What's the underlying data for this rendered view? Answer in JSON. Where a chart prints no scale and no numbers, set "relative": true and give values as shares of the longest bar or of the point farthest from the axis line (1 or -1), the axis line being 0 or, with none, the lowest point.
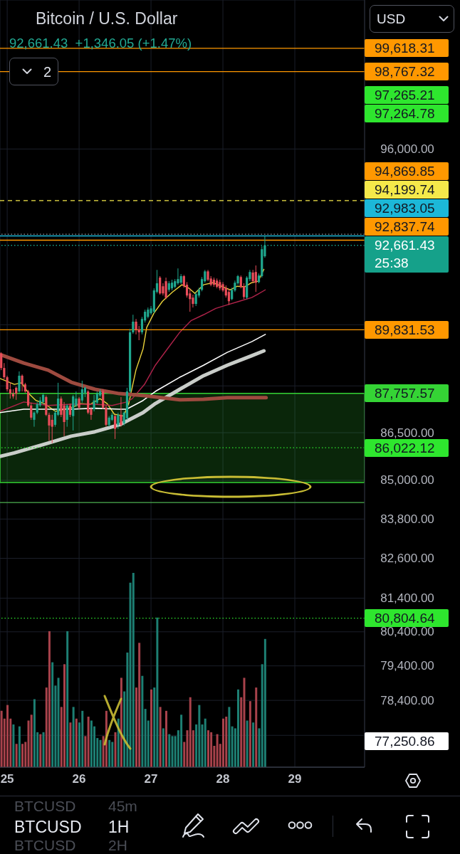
{
  "chart_data": [
    {
      "type": "candlestick",
      "title": "Bitcoin / U.S. Dollar",
      "subtitle": "92,661.43  +1,346.05 (+1.47%)",
      "x": [
        24.917,
        24.958,
        25,
        25.042,
        25.083,
        25.125,
        25.167,
        25.208,
        25.25,
        25.292,
        25.333,
        25.375,
        25.417,
        25.458,
        25.5,
        25.542,
        25.583,
        25.625,
        25.667,
        25.708,
        25.75,
        25.792,
        25.833,
        25.875,
        25.917,
        25.958,
        26,
        26.042,
        26.083,
        26.125,
        26.167,
        26.208,
        26.25,
        26.292,
        26.333,
        26.375,
        26.417,
        26.458,
        26.5,
        26.542,
        26.583,
        26.625,
        26.667,
        26.708,
        26.75,
        26.792,
        26.833,
        26.875,
        26.917,
        26.958,
        27,
        27.042,
        27.083,
        27.125,
        27.167,
        27.208,
        27.25,
        27.292,
        27.333,
        27.375,
        27.417,
        27.458,
        27.5,
        27.542,
        27.583,
        27.625,
        27.667,
        27.708,
        27.75,
        27.792,
        27.833,
        27.875,
        27.917,
        27.958,
        28,
        28.042,
        28.083,
        28.125,
        28.167,
        28.208,
        28.25,
        28.292,
        28.333,
        28.375,
        28.417,
        28.458,
        28.5,
        28.542,
        28.583
      ],
      "ohlc": [
        [
          89050,
          89090,
          88510,
          88580
        ],
        [
          88580,
          88740,
          88210,
          88280
        ],
        [
          88280,
          88330,
          87820,
          87890
        ],
        [
          87890,
          88120,
          87590,
          87750
        ],
        [
          87750,
          87890,
          87590,
          87660
        ],
        [
          87940,
          87980,
          87550,
          87750
        ],
        [
          87820,
          88470,
          87780,
          88330
        ],
        [
          88330,
          88370,
          87820,
          88050
        ],
        [
          88050,
          88100,
          87780,
          87820
        ],
        [
          87820,
          87870,
          87320,
          87370
        ],
        [
          87370,
          87460,
          86910,
          86980
        ],
        [
          86910,
          87180,
          86690,
          87140
        ],
        [
          87140,
          87480,
          87090,
          87410
        ],
        [
          87370,
          87640,
          87320,
          87530
        ],
        [
          87480,
          87750,
          87410,
          87710
        ],
        [
          87640,
          87690,
          87030,
          87070
        ],
        [
          87070,
          87140,
          86240,
          86730
        ],
        [
          86910,
          87070,
          86170,
          86690
        ],
        [
          86750,
          87210,
          86690,
          87140
        ],
        [
          87070,
          88100,
          87030,
          87590
        ],
        [
          87590,
          87660,
          87000,
          87070
        ],
        [
          87370,
          87480,
          86390,
          86840
        ],
        [
          86910,
          87410,
          86690,
          87370
        ],
        [
          87370,
          87430,
          87000,
          87070
        ],
        [
          87030,
          87710,
          86570,
          87660
        ],
        [
          87370,
          87820,
          87320,
          87590
        ],
        [
          87590,
          87640,
          87250,
          87300
        ],
        [
          87530,
          88170,
          87460,
          87890
        ],
        [
          87780,
          87980,
          87640,
          87940
        ],
        [
          87820,
          87870,
          87090,
          87140
        ],
        [
          87250,
          87320,
          86910,
          87070
        ],
        [
          87250,
          87710,
          87180,
          87530
        ],
        [
          87460,
          87820,
          87410,
          87750
        ],
        [
          87690,
          87890,
          87640,
          87820
        ],
        [
          87820,
          87890,
          87250,
          87300
        ],
        [
          87300,
          87370,
          86690,
          86750
        ],
        [
          86750,
          87030,
          86690,
          86980
        ],
        [
          86910,
          87140,
          86870,
          87070
        ],
        [
          87030,
          87070,
          86300,
          86620
        ],
        [
          86750,
          87140,
          86620,
          87070
        ],
        [
          87070,
          87640,
          86690,
          86750
        ],
        [
          86800,
          87180,
          86730,
          87140
        ],
        [
          86960,
          87940,
          86910,
          87820
        ],
        [
          87820,
          89860,
          87780,
          89750
        ],
        [
          89750,
          90330,
          89700,
          90100
        ],
        [
          90100,
          90190,
          89680,
          89840
        ],
        [
          89840,
          89960,
          89490,
          89750
        ],
        [
          89750,
          90260,
          89680,
          90190
        ],
        [
          90140,
          90500,
          90070,
          90430
        ],
        [
          90260,
          90570,
          90210,
          90500
        ],
        [
          90380,
          90620,
          90330,
          90540
        ],
        [
          90430,
          91210,
          90380,
          91140
        ],
        [
          91090,
          91830,
          91040,
          91380
        ],
        [
          91570,
          91620,
          91000,
          91040
        ],
        [
          91280,
          91380,
          90970,
          91040
        ],
        [
          91450,
          91570,
          90850,
          90900
        ],
        [
          91160,
          91450,
          91090,
          91380
        ],
        [
          91210,
          91500,
          91140,
          91400
        ],
        [
          91260,
          91520,
          91210,
          91450
        ],
        [
          91380,
          91880,
          91330,
          91520
        ],
        [
          91400,
          91690,
          91350,
          91620
        ],
        [
          91620,
          91660,
          91230,
          91280
        ],
        [
          91330,
          91420,
          90900,
          90970
        ],
        [
          91040,
          91210,
          90430,
          90850
        ],
        [
          90900,
          91000,
          90570,
          90690
        ],
        [
          90690,
          91090,
          90620,
          91020
        ],
        [
          90970,
          91230,
          90900,
          91160
        ],
        [
          91160,
          91590,
          91110,
          91520
        ],
        [
          91450,
          91830,
          91400,
          91780
        ],
        [
          91780,
          91830,
          91450,
          91500
        ],
        [
          91540,
          91620,
          91280,
          91330
        ],
        [
          91500,
          91570,
          91260,
          91330
        ],
        [
          91470,
          91540,
          91210,
          91260
        ],
        [
          91420,
          91500,
          91140,
          91210
        ],
        [
          91350,
          91420,
          91090,
          91140
        ],
        [
          91230,
          91310,
          90900,
          90970
        ],
        [
          91090,
          91190,
          90660,
          90780
        ],
        [
          90850,
          91230,
          90810,
          91160
        ],
        [
          91140,
          91470,
          91090,
          91400
        ],
        [
          91380,
          91660,
          91330,
          91620
        ],
        [
          91590,
          91640,
          91210,
          91260
        ],
        [
          91280,
          91380,
          90850,
          90920
        ],
        [
          90900,
          91620,
          90850,
          91570
        ],
        [
          91520,
          91830,
          91450,
          91760
        ],
        [
          91740,
          91830,
          91380,
          91450
        ],
        [
          91760,
          91980,
          91090,
          91400
        ],
        [
          91420,
          91710,
          91380,
          91640
        ],
        [
          91620,
          92630,
          91570,
          92530
        ],
        [
          92290,
          92990,
          92240,
          92661.43
        ]
      ],
      "colors": [
        "#ea4d5a",
        "#ea4d5a",
        "#ea4d5a",
        "#ea4d5a",
        "#ea4d5a",
        "#ea4d5a",
        "#1fa88f",
        "#ea4d5a",
        "#ea4d5a",
        "#ea4d5a",
        "#ea4d5a",
        "#1fa88f",
        "#1fa88f",
        "#1fa88f",
        "#1fa88f",
        "#ea4d5a",
        "#ea4d5a",
        "#ea4d5a",
        "#1fa88f",
        "#1fa88f",
        "#ea4d5a",
        "#ea4d5a",
        "#1fa88f",
        "#ea4d5a",
        "#1fa88f",
        "#1fa88f",
        "#ea4d5a",
        "#1fa88f",
        "#1fa88f",
        "#ea4d5a",
        "#ea4d5a",
        "#1fa88f",
        "#1fa88f",
        "#1fa88f",
        "#ea4d5a",
        "#ea4d5a",
        "#1fa88f",
        "#1fa88f",
        "#ea4d5a",
        "#1fa88f",
        "#ea4d5a",
        "#1fa88f",
        "#1fa88f",
        "#1fa88f",
        "#1fa88f",
        "#ea4d5a",
        "#ea4d5a",
        "#1fa88f",
        "#1fa88f",
        "#1fa88f",
        "#1fa88f",
        "#1fa88f",
        "#1fa88f",
        "#ea4d5a",
        "#ea4d5a",
        "#ea4d5a",
        "#1fa88f",
        "#1fa88f",
        "#1fa88f",
        "#1fa88f",
        "#1fa88f",
        "#ea4d5a",
        "#ea4d5a",
        "#ea4d5a",
        "#ea4d5a",
        "#1fa88f",
        "#1fa88f",
        "#1fa88f",
        "#1fa88f",
        "#ea4d5a",
        "#ea4d5a",
        "#ea4d5a",
        "#ea4d5a",
        "#ea4d5a",
        "#ea4d5a",
        "#ea4d5a",
        "#ea4d5a",
        "#1fa88f",
        "#1fa88f",
        "#1fa88f",
        "#ea4d5a",
        "#ea4d5a",
        "#1fa88f",
        "#1fa88f",
        "#ea4d5a",
        "#ea4d5a",
        "#1fa88f",
        "#1fa88f",
        "#1fa88f"
      ],
      "series": [
        {
          "type": "line",
          "color": "#e8d13a",
          "x": [
            24.9,
            25.1,
            25.2,
            25.3,
            25.4,
            25.53,
            25.67,
            25.89,
            26.02,
            26.16,
            26.29,
            26.39,
            26.49,
            26.62,
            26.69,
            26.79,
            26.89,
            26.94,
            27.04,
            27.16,
            27.3,
            27.43,
            27.53,
            27.61,
            27.73,
            27.86,
            28,
            28.1,
            28.2,
            28.3,
            28.4,
            28.49,
            28.57
          ],
          "values": [
            88240,
            88050,
            88100,
            87750,
            87530,
            87410,
            87180,
            87300,
            87430,
            87410,
            87590,
            87430,
            87090,
            87030,
            87430,
            88510,
            89210,
            89910,
            90380,
            90780,
            91090,
            91330,
            91210,
            91040,
            91330,
            91400,
            91260,
            91160,
            91280,
            91260,
            91400,
            91450,
            91850
          ]
        },
        {
          "type": "line",
          "color": "#b0234a",
          "x": [
            24.9,
            25.23,
            25.57,
            25.89,
            26.22,
            26.46,
            26.66,
            26.74,
            26.91,
            27.06,
            27.23,
            27.4,
            27.56,
            27.73,
            27.9,
            28.06,
            28.23,
            28.4,
            28.49,
            28.59
          ],
          "values": [
            87180,
            87480,
            87370,
            87410,
            87410,
            87370,
            87480,
            87590,
            88050,
            88670,
            89210,
            89750,
            90140,
            90330,
            90540,
            90660,
            90780,
            90900,
            91020,
            91160
          ]
        },
        {
          "type": "line",
          "color": "#ffffff",
          "x": [
            24.9,
            25.23,
            25.57,
            25.89,
            26.22,
            26.56,
            26.66,
            26.89,
            27.06,
            27.4,
            27.73,
            28.06,
            28.4,
            28.59
          ],
          "values": [
            87140,
            87250,
            87250,
            87250,
            87280,
            87250,
            87250,
            87530,
            87820,
            88280,
            88670,
            89090,
            89440,
            89680
          ]
        },
        {
          "type": "line",
          "color": "#c9cdc9",
          "x": [
            24.9,
            25.1,
            25.57,
            25.89,
            26.22,
            26.56,
            26.89,
            27.06,
            27.4,
            27.73,
            28.06,
            28.4,
            28.57
          ],
          "values": [
            85750,
            85860,
            86170,
            86390,
            86530,
            86750,
            87140,
            87430,
            87890,
            88330,
            88670,
            88980,
            89140
          ]
        },
        {
          "type": "line",
          "color": "#9e4a3f",
          "x": [
            24.9,
            25.23,
            25.57,
            25.89,
            26.22,
            26.56,
            26.89,
            27.4,
            27.73,
            28.06,
            28.4,
            28.6
          ],
          "values": [
            89020,
            88740,
            88510,
            88120,
            87890,
            87750,
            87690,
            87550,
            87570,
            87620,
            87620,
            87620
          ]
        }
      ],
      "xlim": [
        24.9,
        29.97
      ],
      "xticks": [
        25,
        26,
        27,
        28,
        29
      ],
      "ylim": [
        76500,
        101400
      ],
      "log": true,
      "yticks": [
        {
          "value": 96000,
          "label": "96,000.00"
        },
        {
          "value": 90000,
          "label": null
        },
        {
          "value": 88000,
          "label": null
        },
        {
          "value": 86500,
          "label": "86,500.00"
        },
        {
          "value": 85000,
          "label": "85,000.00"
        },
        {
          "value": 83800,
          "label": "83,800.00"
        },
        {
          "value": 82600,
          "label": "82,600.00"
        },
        {
          "value": 81400,
          "label": "81,400.00"
        },
        {
          "value": 80400,
          "label": "80,400.00"
        },
        {
          "value": 79400,
          "label": "79,400.00"
        },
        {
          "value": 78400,
          "label": "78,400.00"
        },
        {
          "value": 77400,
          "label": null
        }
      ],
      "grid": true,
      "ref_lines": [
        {
          "axis": "y",
          "value": 99618.31,
          "label": "99,618.31",
          "color": "#ff9800"
        },
        {
          "axis": "y",
          "value": 98767.32,
          "label": "98,767.32",
          "color": "#ff9800"
        },
        {
          "axis": "y",
          "value": 94199.74,
          "label": "94,199.74",
          "color": "#f5e94a",
          "line_style": "dashed"
        },
        {
          "axis": "y",
          "value": 93040,
          "color": "#9598a1",
          "line_style": "dotted"
        },
        {
          "axis": "y",
          "value": 92983.05,
          "label": "92,983.05",
          "color": "#1cb8d8"
        },
        {
          "axis": "y",
          "value": 92837.74,
          "label": "92,837.74",
          "color": "#ff9800"
        },
        {
          "axis": "y",
          "value": 92661.43,
          "label": "92,661.43",
          "color": "#15a18a",
          "line_style": "dotted"
        },
        {
          "axis": "y",
          "value": 89831.53,
          "label": "89,831.53",
          "color": "#ff9800"
        },
        {
          "axis": "y",
          "value": 86022.12,
          "label": "86,022.12",
          "color": "#2ee62e",
          "line_style": "dotted"
        },
        {
          "axis": "y",
          "value": 84310,
          "color": "#4caf50"
        },
        {
          "axis": "y",
          "value": 80804.64,
          "label": "80,804.64",
          "color": "#2ee62e",
          "line_style": "dotted"
        }
      ],
      "bands": [
        {
          "axis": "y",
          "from": 84930,
          "to": 87757.57,
          "label": "87,757.57",
          "color": "#35d435"
        }
      ],
      "annotations": [
        "97,265.21",
        "97,264.78",
        "94,869.85",
        "77,250.86",
        "25:38",
        "USD",
        "2",
        "BTCUSD",
        "45m",
        "BTCUSD",
        "1H",
        "BTCUSD",
        "2H"
      ]
    },
    {
      "type": "bar",
      "relative": true,
      "tick_labels": false,
      "xlim": [
        24.9,
        29.97
      ],
      "x": [
        24.917,
        24.958,
        25,
        25.042,
        25.083,
        25.125,
        25.167,
        25.208,
        25.25,
        25.292,
        25.333,
        25.375,
        25.417,
        25.458,
        25.5,
        25.542,
        25.583,
        25.625,
        25.667,
        25.708,
        25.75,
        25.792,
        25.833,
        25.875,
        25.917,
        25.958,
        26,
        26.042,
        26.083,
        26.125,
        26.167,
        26.208,
        26.25,
        26.292,
        26.333,
        26.375,
        26.417,
        26.458,
        26.5,
        26.542,
        26.583,
        26.625,
        26.667,
        26.708,
        26.75,
        26.792,
        26.833,
        26.875,
        26.917,
        26.958,
        27,
        27.042,
        27.083,
        27.125,
        27.167,
        27.208,
        27.25,
        27.292,
        27.333,
        27.375,
        27.417,
        27.458,
        27.5,
        27.542,
        27.583,
        27.625,
        27.667,
        27.708,
        27.75,
        27.792,
        27.833,
        27.875,
        27.917,
        27.958,
        28,
        28.042,
        28.083,
        28.125,
        28.167,
        28.208,
        28.25,
        28.292,
        28.333,
        28.375,
        28.417,
        28.458,
        28.5,
        28.542,
        28.583
      ],
      "values": [
        0.29,
        0.25,
        0.32,
        0.25,
        0.22,
        0.12,
        0.21,
        0.12,
        0.13,
        0.24,
        0.27,
        0.35,
        0.18,
        0.17,
        0.18,
        0.41,
        0.7,
        0.54,
        0.42,
        0.46,
        0.31,
        0.53,
        0.7,
        0.23,
        0.31,
        0.25,
        0.23,
        0.29,
        0.16,
        0.26,
        0.24,
        0.21,
        0.15,
        0.14,
        0.16,
        0.29,
        0.14,
        0.13,
        0.18,
        0.25,
        0.46,
        0.39,
        0.59,
        0.95,
        1.0,
        0.41,
        0.64,
        0.47,
        0.3,
        0.24,
        0.4,
        0.41,
        0.77,
        0.31,
        0.2,
        0.29,
        0.17,
        0.16,
        0.16,
        0.19,
        0.27,
        0.13,
        0.19,
        0.36,
        0.19,
        0.22,
        0.32,
        0.22,
        0.25,
        0.19,
        0.18,
        0.11,
        0.17,
        0.12,
        0.25,
        0.26,
        0.31,
        0.21,
        0.2,
        0.4,
        0.36,
        0.46,
        0.24,
        0.34,
        0.23,
        0.41,
        0.2,
        0.53,
        0.66
      ],
      "colors": [
        "#a8424b",
        "#a8424b",
        "#a8424b",
        "#a8424b",
        "#1d7f73",
        "#a8424b",
        "#1d7f73",
        "#a8424b",
        "#a8424b",
        "#a8424b",
        "#a8424b",
        "#1d7f73",
        "#1d7f73",
        "#a8424b",
        "#1d7f73",
        "#a8424b",
        "#a8424b",
        "#1d7f73",
        "#1d7f73",
        "#1d7f73",
        "#a8424b",
        "#a8424b",
        "#1d7f73",
        "#a8424b",
        "#1d7f73",
        "#a8424b",
        "#1d7f73",
        "#1d7f73",
        "#a8424b",
        "#a8424b",
        "#1d7f73",
        "#1d7f73",
        "#1d7f73",
        "#1d7f73",
        "#a8424b",
        "#a8424b",
        "#1d7f73",
        "#1d7f73",
        "#a8424b",
        "#1d7f73",
        "#a8424b",
        "#1d7f73",
        "#1d7f73",
        "#1d7f73",
        "#1d7f73",
        "#a8424b",
        "#a8424b",
        "#1d7f73",
        "#1d7f73",
        "#1d7f73",
        "#a8424b",
        "#1d7f73",
        "#1d7f73",
        "#a8424b",
        "#1d7f73",
        "#a8424b",
        "#1d7f73",
        "#1d7f73",
        "#1d7f73",
        "#1d7f73",
        "#1d7f73",
        "#a8424b",
        "#a8424b",
        "#a8424b",
        "#a8424b",
        "#1d7f73",
        "#1d7f73",
        "#1d7f73",
        "#1d7f73",
        "#a8424b",
        "#a8424b",
        "#a8424b",
        "#a8424b",
        "#a8424b",
        "#a8424b",
        "#a8424b",
        "#1d7f73",
        "#1d7f73",
        "#1d7f73",
        "#1d7f73",
        "#a8424b",
        "#a8424b",
        "#1d7f73",
        "#a8424b",
        "#1d7f73",
        "#a8424b",
        "#1d7f73",
        "#1d7f73",
        "#1d7f73"
      ]
    }
  ]
}
